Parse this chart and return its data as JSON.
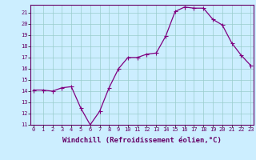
{
  "x": [
    0,
    1,
    2,
    3,
    4,
    5,
    6,
    7,
    8,
    9,
    10,
    11,
    12,
    13,
    14,
    15,
    16,
    17,
    18,
    19,
    20,
    21,
    22,
    23
  ],
  "y": [
    14.1,
    14.1,
    14.0,
    14.3,
    14.4,
    12.5,
    11.0,
    12.2,
    14.3,
    16.0,
    17.0,
    17.0,
    17.3,
    17.4,
    18.9,
    21.1,
    21.5,
    21.4,
    21.4,
    20.4,
    19.9,
    18.3,
    17.2,
    16.3
  ],
  "ylim": [
    11,
    21.7
  ],
  "xlim": [
    -0.3,
    23.3
  ],
  "yticks": [
    11,
    12,
    13,
    14,
    15,
    16,
    17,
    18,
    19,
    20,
    21
  ],
  "xticks": [
    0,
    1,
    2,
    3,
    4,
    5,
    6,
    7,
    8,
    9,
    10,
    11,
    12,
    13,
    14,
    15,
    16,
    17,
    18,
    19,
    20,
    21,
    22,
    23
  ],
  "xlabel": "Windchill (Refroidissement éolien,°C)",
  "line_color": "#800080",
  "marker_color": "#800080",
  "bg_color": "#cceeff",
  "grid_color": "#99cccc",
  "tick_fontsize": 5.0,
  "xlabel_fontsize": 6.5,
  "marker_size": 1.8,
  "linewidth": 0.9
}
